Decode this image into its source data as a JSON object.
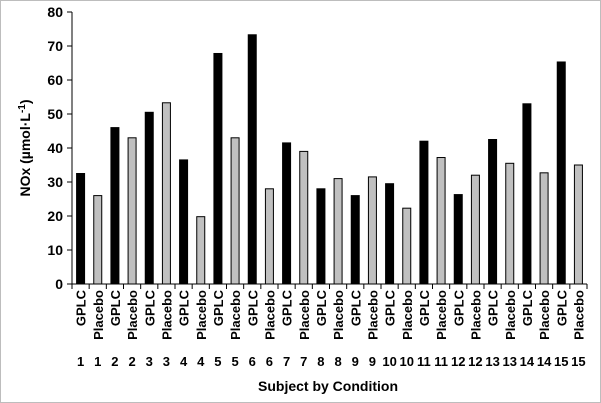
{
  "chart_data": {
    "type": "bar",
    "title": "",
    "xlabel": "Subject by Condition",
    "ylabel": "NOx (µmol·L⁻¹)",
    "ylim": [
      0,
      80
    ],
    "yticks": [
      0,
      10,
      20,
      30,
      40,
      50,
      60,
      70,
      80
    ],
    "grid": false,
    "legend": "none",
    "categories": [
      {
        "subject": "1",
        "condition": "GPLC"
      },
      {
        "subject": "1",
        "condition": "Placebo"
      },
      {
        "subject": "2",
        "condition": "GPLC"
      },
      {
        "subject": "2",
        "condition": "Placebo"
      },
      {
        "subject": "3",
        "condition": "GPLC"
      },
      {
        "subject": "3",
        "condition": "Placebo"
      },
      {
        "subject": "4",
        "condition": "GPLC"
      },
      {
        "subject": "4",
        "condition": "Placebo"
      },
      {
        "subject": "5",
        "condition": "GPLC"
      },
      {
        "subject": "5",
        "condition": "Placebo"
      },
      {
        "subject": "6",
        "condition": "GPLC"
      },
      {
        "subject": "6",
        "condition": "Placebo"
      },
      {
        "subject": "7",
        "condition": "GPLC"
      },
      {
        "subject": "7",
        "condition": "Placebo"
      },
      {
        "subject": "8",
        "condition": "GPLC"
      },
      {
        "subject": "8",
        "condition": "Placebo"
      },
      {
        "subject": "9",
        "condition": "GPLC"
      },
      {
        "subject": "9",
        "condition": "Placebo"
      },
      {
        "subject": "10",
        "condition": "GPLC"
      },
      {
        "subject": "10",
        "condition": "Placebo"
      },
      {
        "subject": "11",
        "condition": "GPLC"
      },
      {
        "subject": "11",
        "condition": "Placebo"
      },
      {
        "subject": "12",
        "condition": "GPLC"
      },
      {
        "subject": "12",
        "condition": "Placebo"
      },
      {
        "subject": "13",
        "condition": "GPLC"
      },
      {
        "subject": "13",
        "condition": "Placebo"
      },
      {
        "subject": "14",
        "condition": "GPLC"
      },
      {
        "subject": "14",
        "condition": "Placebo"
      },
      {
        "subject": "15",
        "condition": "GPLC"
      },
      {
        "subject": "15",
        "condition": "Placebo"
      }
    ],
    "values": [
      32.5,
      26,
      46,
      43,
      50.5,
      53.3,
      36.5,
      19.8,
      67.8,
      43,
      73.3,
      28,
      41.5,
      39,
      28,
      31,
      26,
      31.5,
      29.5,
      22.3,
      42,
      37.2,
      26.3,
      32,
      42.5,
      35.5,
      53,
      32.7,
      65.3,
      35
    ],
    "colors": {
      "GPLC": "#000000",
      "Placebo": "#c0c0c0"
    }
  }
}
